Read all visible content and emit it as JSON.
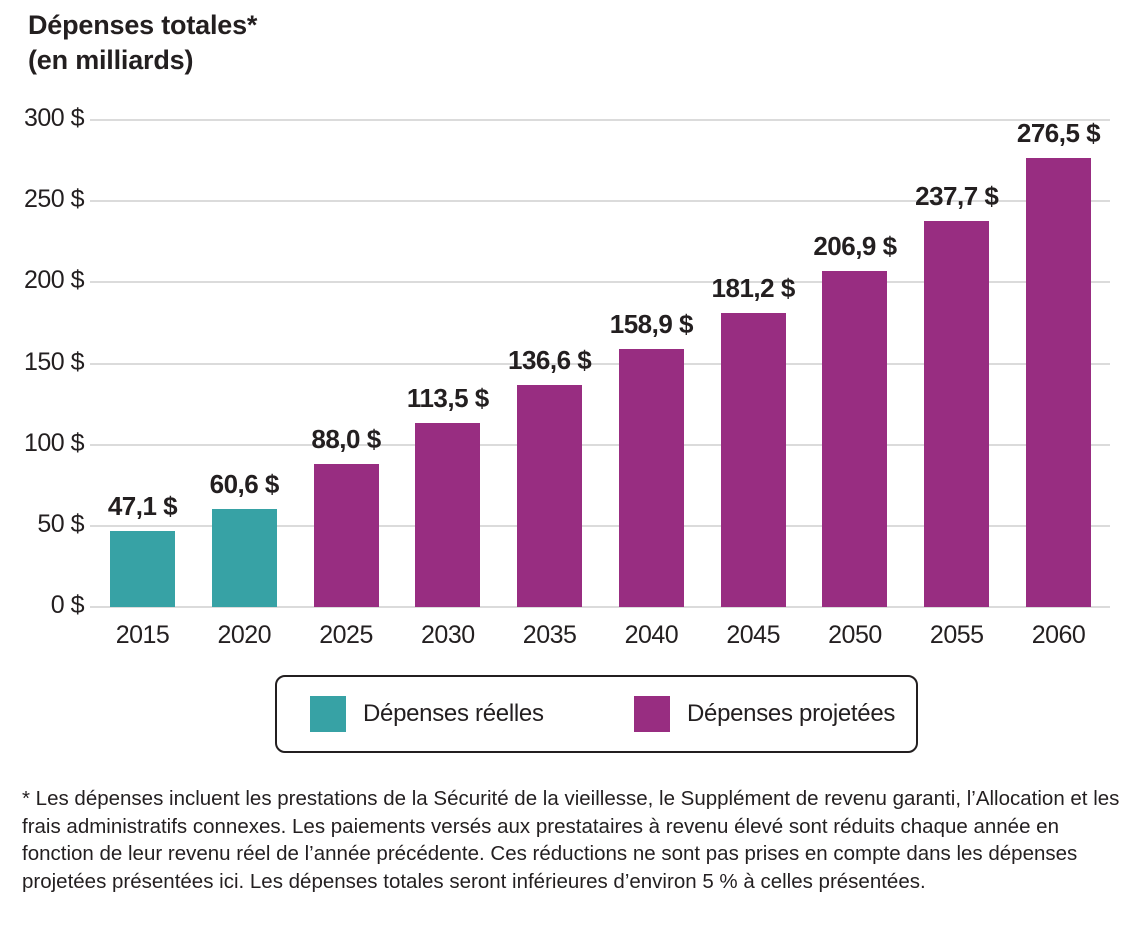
{
  "title": {
    "line1": "Dépenses totales*",
    "line2": "(en milliards)"
  },
  "chart_data": {
    "type": "bar",
    "title": "Dépenses totales* (en milliards)",
    "xlabel": "",
    "ylabel": "",
    "categories": [
      "2015",
      "2020",
      "2025",
      "2030",
      "2035",
      "2040",
      "2045",
      "2050",
      "2055",
      "2060"
    ],
    "values": [
      47.1,
      60.6,
      88.0,
      113.5,
      136.6,
      158.9,
      181.2,
      206.9,
      237.7,
      276.5
    ],
    "value_labels": [
      "47,1 $",
      "60,6 $",
      "88,0 $",
      "113,5 $",
      "136,6 $",
      "158,9 $",
      "181,2 $",
      "206,9 $",
      "237,7 $",
      "276,5 $"
    ],
    "series": [
      {
        "name": "Dépenses réelles",
        "color": "#37A2A5",
        "categories": [
          "2015",
          "2020"
        ],
        "values": [
          47.1,
          60.6
        ]
      },
      {
        "name": "Dépenses projetées",
        "color": "#982D81",
        "categories": [
          "2025",
          "2030",
          "2035",
          "2040",
          "2045",
          "2050",
          "2055",
          "2060"
        ],
        "values": [
          88.0,
          113.5,
          136.6,
          158.9,
          181.2,
          206.9,
          237.7,
          276.5
        ]
      }
    ],
    "series_index": [
      0,
      0,
      1,
      1,
      1,
      1,
      1,
      1,
      1,
      1
    ],
    "ylim": [
      0,
      300
    ],
    "yticks": [
      0,
      50,
      100,
      150,
      200,
      250,
      300
    ],
    "ytick_labels": [
      "0 $",
      "50 $",
      "100 $",
      "150 $",
      "200 $",
      "250 $",
      "300 $"
    ],
    "grid": true,
    "legend_position": "bottom"
  },
  "legend": {
    "items": [
      {
        "label": "Dépenses réelles",
        "color": "#37A2A5"
      },
      {
        "label": "Dépenses projetées",
        "color": "#982D81"
      }
    ]
  },
  "footnote": {
    "full": "* Les dépenses incluent les prestations de la Sécurité de la vieillesse, le Supplément de revenu garanti, l’Allocation et les frais administratifs connexes. Les paiements versés aux prestataires à revenu élevé sont réduits chaque année en fonction de leur revenu réel de l’année précédente. Ces réductions ne sont pas prises en compte dans les dépenses projetées présentées ici. Les dépenses totales seront inférieures d’environ 5 % à celles présentées.",
    "lines": [
      "* Les dépenses incluent les prestations de la Sécurité de la vieillesse, le Supplément de revenu garanti,",
      "l’Allocation et les frais administratifs connexes. Les paiements versés aux prestataires à revenu élevé sont",
      "réduits chaque année en fonction de leur revenu réel de l’année précédente. Ces réductions ne sont pas prises",
      "en compte dans les dépenses projetées présentées ici. Les dépenses totales seront inférieures d’environ 5 %",
      "à celles présentées."
    ]
  },
  "colors": {
    "actual": "#37A2A5",
    "projected": "#982D81",
    "text": "#231F20",
    "gridline": "#DBDBDB",
    "background": "#FFFFFF"
  }
}
